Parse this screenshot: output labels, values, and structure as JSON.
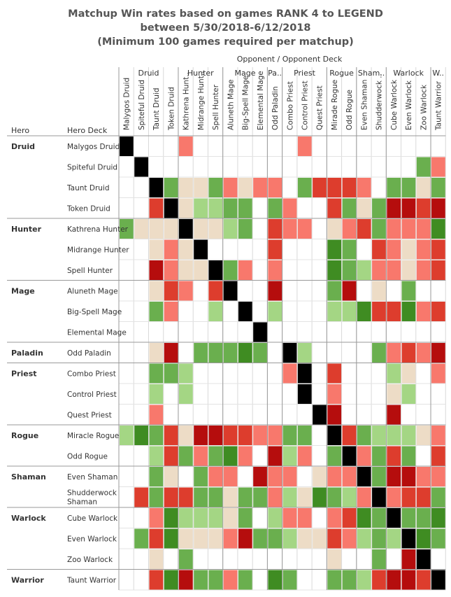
{
  "title_lines": [
    "Matchup Win rates based on games RANK 4 to LEGEND",
    "between 5/30/2018-6/12/2018",
    "(Minimum 100 games required per matchup)"
  ],
  "header": {
    "opponent_label": "Opponent  /  Opponent Deck",
    "hero_label": "Hero",
    "hero_deck_label": "Hero Deck"
  },
  "colors": {
    "black": "#000000",
    "dark_red": "#b50d0d",
    "red": "#dd3d2d",
    "salmon": "#f8786c",
    "light_salmon": "#fb9a91",
    "tan": "#eddcc6",
    "light_green": "#a4d684",
    "green": "#6aaf4e",
    "dark_green": "#3f8c22",
    "empty": "#ffffff"
  },
  "chart_data": {
    "type": "heatmap",
    "title": "Matchup Win rates based on games RANK 4 to LEGEND between 5/30/2018-6/12/2018 (Minimum 100 games required per matchup)",
    "xlabel": "Opponent / Opponent Deck",
    "ylabel": "Hero / Hero Deck",
    "opponent_classes": [
      {
        "label": "Druid",
        "span": 4
      },
      {
        "label": "Hunter",
        "span": 3
      },
      {
        "label": "Mage",
        "span": 3
      },
      {
        "label": "Pa..",
        "span": 1
      },
      {
        "label": "Priest",
        "span": 3
      },
      {
        "label": "Rogue",
        "span": 2
      },
      {
        "label": "Sham..",
        "span": 2
      },
      {
        "label": "Warlock",
        "span": 3
      },
      {
        "label": "W..",
        "span": 1
      }
    ],
    "columns": [
      "Malygos Druid",
      "Spiteful Druid",
      "Taunt Druid",
      "Token Druid",
      "Kathrena Hunt..",
      "Midrange Hunt..",
      "Spell Hunter",
      "Aluneth Mage",
      "Big-Spell Mage",
      "Elemental Mage",
      "Odd Paladin",
      "Combo Priest",
      "Control Priest",
      "Quest Priest",
      "Mirade Rogue",
      "Odd Rogue",
      "Even Shaman",
      "Shudderwock ..",
      "Cube Warlock",
      "Even Warlock",
      "Zoo Warlock",
      "Taunt Warrior"
    ],
    "hero_classes": [
      {
        "label": "Druid",
        "span": 4
      },
      {
        "label": "Hunter",
        "span": 3
      },
      {
        "label": "Mage",
        "span": 3
      },
      {
        "label": "Paladin",
        "span": 1
      },
      {
        "label": "Priest",
        "span": 3
      },
      {
        "label": "Rogue",
        "span": 2
      },
      {
        "label": "Shaman",
        "span": 2
      },
      {
        "label": "Warlock",
        "span": 3
      },
      {
        "label": "Warrior",
        "span": 1
      }
    ],
    "rows": [
      "Malygos Druid",
      "Spiteful Druid",
      "Taunt Druid",
      "Token Druid",
      "Kathrena Hunter",
      "Midrange Hunter",
      "Spell Hunter",
      "Aluneth Mage",
      "Big-Spell Mage",
      "Elemental Mage",
      "Odd Paladin",
      "Combo Priest",
      "Control Priest",
      "Quest Priest",
      "Miracle Rogue",
      "Odd Rogue",
      "Even Shaman",
      "Shudderwock Shaman",
      "Cube Warlock",
      "Even Warlock",
      "Zoo Warlock",
      "Taunt Warrior"
    ],
    "color_scale": "win rate: red = unfavorable, tan = even, green = favorable, black = mirror, white = insufficient games",
    "cells": [
      "K...S.......S.........",
      ".K..................GS",
      "..KGTTGSTSS.GRRRS.GGTG",
      "..RKTLLGG.GS..RGTGXXRX",
      "GTTTKTTLG.RSS.TSRGSSSD",
      "..TSTK....R...DG.RSTSR",
      "..XSTTKGS.S...DGLSSTSR",
      "..TRS.RK..X...GX.T.G..",
      "..GS..L.K.L...LLDRRDSR",
      ".........K............",
      "..TX.GGGDG.KL....GSRSX",
      "..GGL......SK.R...LT.S",
      "..L.L.......K.S...TL..",
      "..S..........KX...X...",
      "LDGRTXXRRSSGG.KRGLLLTS",
      "..LRGSGDS.XLS.GKSGRG.R",
      "..GT.GSS.XSS.TSSKGXXSS",
      ".RGRRGGTGGSLTDGLSKSRRG",
      "..SDLLLTG.LSS.SRDGKGGD",
      ".GRDTTTSXGGLTTRSLGLKDG",
      "..T.G.........T..G.XK.",
      "..RDXGGSG.DG..GGLRXXRK"
    ]
  }
}
